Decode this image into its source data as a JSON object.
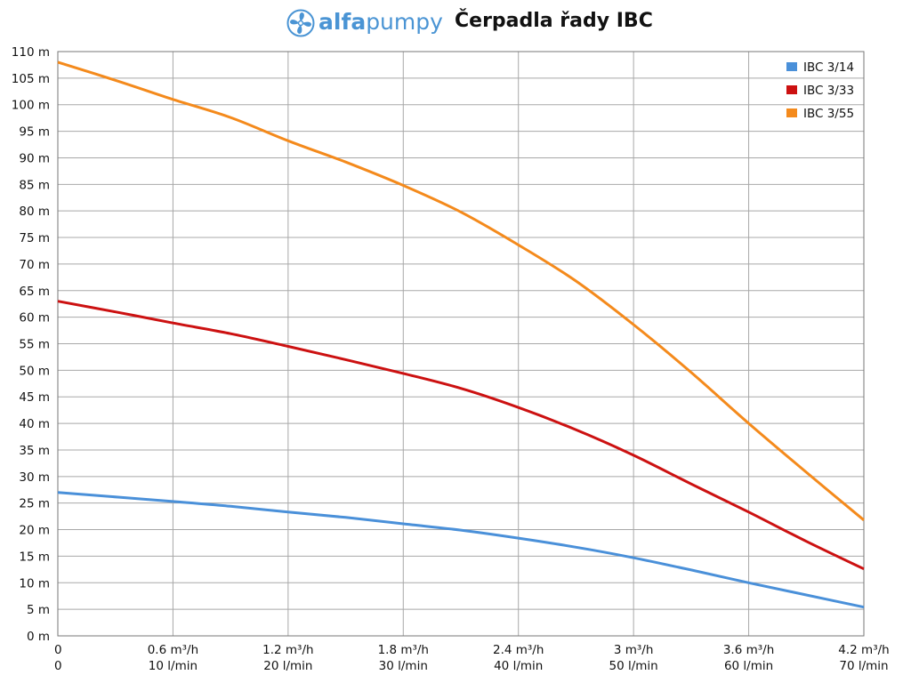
{
  "header": {
    "logo_prefix": "alfa",
    "logo_suffix": "pumpy",
    "logo_icon": "fan-icon",
    "title": "Čerpadla řady IBC"
  },
  "chart_data": {
    "type": "line",
    "title": "Čerpadla řady IBC",
    "x_range": [
      0,
      4.2
    ],
    "y_range": [
      0,
      110
    ],
    "grid": true,
    "legend_position": "top-right",
    "y_ticks": [
      {
        "value": 0,
        "label": "0 m"
      },
      {
        "value": 5,
        "label": "5 m"
      },
      {
        "value": 10,
        "label": "10 m"
      },
      {
        "value": 15,
        "label": "15 m"
      },
      {
        "value": 20,
        "label": "20 m"
      },
      {
        "value": 25,
        "label": "25 m"
      },
      {
        "value": 30,
        "label": "30 m"
      },
      {
        "value": 35,
        "label": "35 m"
      },
      {
        "value": 40,
        "label": "40 m"
      },
      {
        "value": 45,
        "label": "45 m"
      },
      {
        "value": 50,
        "label": "50 m"
      },
      {
        "value": 55,
        "label": "55 m"
      },
      {
        "value": 60,
        "label": "60 m"
      },
      {
        "value": 65,
        "label": "65 m"
      },
      {
        "value": 70,
        "label": "70 m"
      },
      {
        "value": 75,
        "label": "75 m"
      },
      {
        "value": 80,
        "label": "80 m"
      },
      {
        "value": 85,
        "label": "85 m"
      },
      {
        "value": 90,
        "label": "90 m"
      },
      {
        "value": 95,
        "label": "95 m"
      },
      {
        "value": 100,
        "label": "100 m"
      },
      {
        "value": 105,
        "label": "105 m"
      },
      {
        "value": 110,
        "label": "110 m"
      }
    ],
    "x_ticks": [
      {
        "value": 0,
        "label": "0",
        "label2": "0"
      },
      {
        "value": 0.6,
        "label": "0.6 m³/h",
        "label2": "10 l/min"
      },
      {
        "value": 1.2,
        "label": "1.2 m³/h",
        "label2": "20 l/min"
      },
      {
        "value": 1.8,
        "label": "1.8 m³/h",
        "label2": "30 l/min"
      },
      {
        "value": 2.4,
        "label": "2.4 m³/h",
        "label2": "40 l/min"
      },
      {
        "value": 3.0,
        "label": "3 m³/h",
        "label2": "50 l/min"
      },
      {
        "value": 3.6,
        "label": "3.6 m³/h",
        "label2": "60 l/min"
      },
      {
        "value": 4.2,
        "label": "4.2 m³/h",
        "label2": "70 l/min"
      }
    ],
    "series": [
      {
        "name": "IBC 3/14",
        "color": "#4a90d9",
        "x": [
          0,
          0.6,
          0.9,
          1.2,
          1.5,
          1.8,
          2.1,
          2.4,
          2.7,
          3.0,
          3.3,
          3.6,
          3.9,
          4.2
        ],
        "y": [
          27,
          25.3,
          24.4,
          23.3,
          22.3,
          21.1,
          19.9,
          18.4,
          16.7,
          14.7,
          12.4,
          10.0,
          7.7,
          5.4
        ]
      },
      {
        "name": "IBC 3/33",
        "color": "#cc1111",
        "x": [
          0,
          0.3,
          0.6,
          0.9,
          1.2,
          1.5,
          1.8,
          2.1,
          2.4,
          2.7,
          3.0,
          3.3,
          3.6,
          3.9,
          4.2
        ],
        "y": [
          63,
          61,
          58.9,
          56.9,
          54.5,
          52,
          49.4,
          46.6,
          43,
          38.8,
          34,
          28.6,
          23.3,
          17.8,
          12.6
        ]
      },
      {
        "name": "IBC 3/55",
        "color": "#f48a1c",
        "x": [
          0,
          0.3,
          0.6,
          0.9,
          1.2,
          1.5,
          1.8,
          2.1,
          2.4,
          2.7,
          3.0,
          3.3,
          3.6,
          3.9,
          4.2
        ],
        "y": [
          108,
          104.6,
          101,
          97.6,
          93.2,
          89.2,
          84.8,
          79.8,
          73.6,
          66.8,
          58.6,
          49.6,
          40,
          30.8,
          21.8
        ]
      }
    ]
  }
}
